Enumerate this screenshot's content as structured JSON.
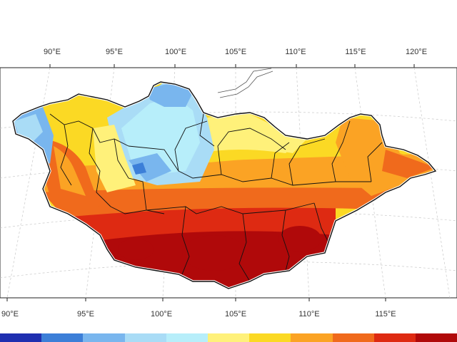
{
  "map": {
    "top_lon_labels": [
      "90°E",
      "95°E",
      "100°E",
      "105°E",
      "110°E",
      "115°E",
      "120°E"
    ],
    "bottom_lon_labels": [
      "90°E",
      "95°E",
      "100°E",
      "105°E",
      "110°E",
      "115°E"
    ],
    "colors": {
      "deep_blue": "#1f2fb0",
      "blue": "#3c7fd8",
      "light_blue": "#79b6ee",
      "pale_blue": "#a9dcf6",
      "cyan_pale": "#b7eefa",
      "pale_yellow": "#fff17a",
      "yellow": "#fbd924",
      "light_orange": "#fba324",
      "orange": "#f06a1c",
      "red": "#de2a12",
      "dark_red": "#b0090a",
      "border": "#111111",
      "outline": "#ffffff",
      "grid": "#c8c8c8"
    }
  },
  "legend": {
    "colors": [
      "#1f2fb0",
      "#3c7fd8",
      "#79b6ee",
      "#a9dcf6",
      "#b7eefa",
      "#fff17a",
      "#fbd924",
      "#fba324",
      "#f06a1c",
      "#de2a12",
      "#b0090a"
    ]
  }
}
